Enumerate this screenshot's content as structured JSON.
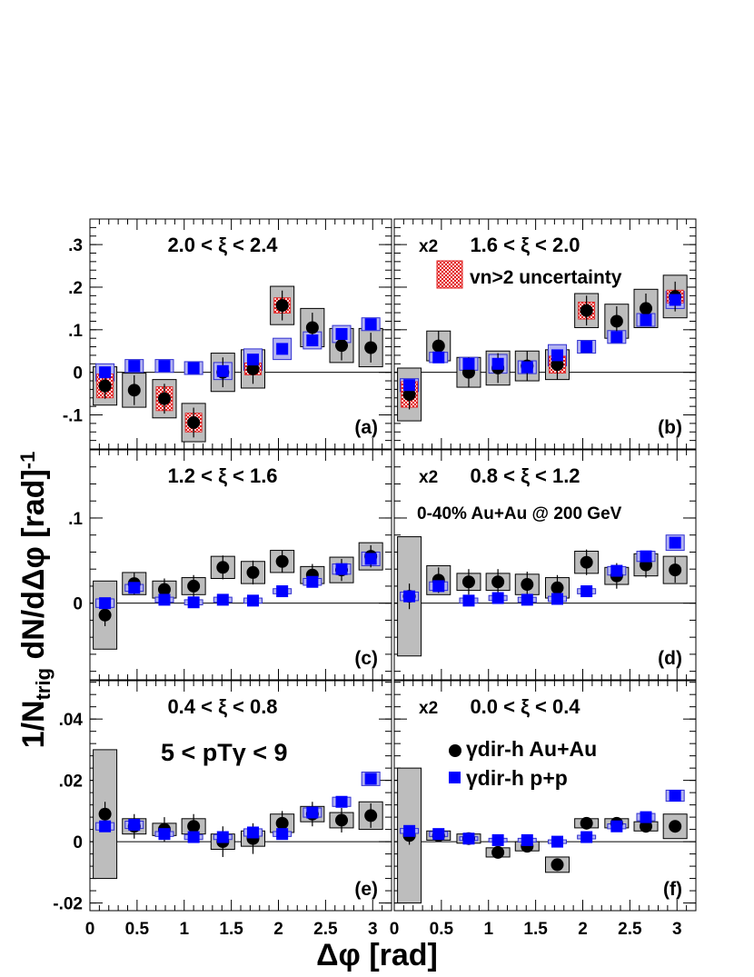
{
  "figure": {
    "ylabel": "1/N_trig dN/dΔφ [rad]⁻¹",
    "xlabel": "Δφ [rad]",
    "x_ticks": [
      "0",
      "0.5",
      "1",
      "1.5",
      "2",
      "2.5",
      "3"
    ]
  },
  "legend": {
    "auau": "γdir-h Au+Au",
    "pp": "γdir-h p+p",
    "vn_uncertainty": "vn>2 uncertainty"
  },
  "annotations": {
    "centrality": "0-40% Au+Au @ 200 GeV",
    "pt_range": "5 < pTγ < 9"
  },
  "colors": {
    "auau": "#000000",
    "pp": "#0000ff",
    "pp_box": "#b3b3f0",
    "auau_box": "#bdbdbd",
    "vn_band": "#ee2222"
  },
  "chart_data": [
    {
      "id": "a",
      "type": "scatter",
      "title": "2.0 < ξ < 2.4",
      "scale": "",
      "panel_label": "(a)",
      "ylim": [
        -0.18,
        0.36
      ],
      "y_ticks": [
        -0.1,
        0,
        0.1,
        0.2,
        0.3
      ],
      "x": [
        0.16,
        0.47,
        0.79,
        1.1,
        1.41,
        1.73,
        2.04,
        2.36,
        2.67,
        2.98
      ],
      "series": [
        {
          "name": "γdir-h Au+Au",
          "values": [
            -0.032,
            -0.042,
            -0.062,
            -0.118,
            0.0,
            0.008,
            0.157,
            0.105,
            0.063,
            0.058
          ],
          "stat": [
            0.03,
            0.035,
            0.035,
            0.035,
            0.035,
            0.035,
            0.035,
            0.035,
            0.035,
            0.035
          ],
          "sys": [
            0.045,
            0.04,
            0.045,
            0.045,
            0.045,
            0.045,
            0.045,
            0.045,
            0.04,
            0.045
          ],
          "vn_unc": [
            0.028,
            0.0,
            0.028,
            0.022,
            0.0,
            0.014,
            0.018,
            0.0,
            0.0,
            0.0
          ]
        },
        {
          "name": "γdir-h p+p",
          "values": [
            0.0,
            0.015,
            0.015,
            0.01,
            0.003,
            0.03,
            0.055,
            0.075,
            0.09,
            0.113
          ],
          "stat": [
            0.008,
            0.008,
            0.008,
            0.008,
            0.008,
            0.008,
            0.008,
            0.008,
            0.008,
            0.008
          ],
          "sys": [
            0.02,
            0.015,
            0.015,
            0.015,
            0.02,
            0.025,
            0.025,
            0.02,
            0.02,
            0.015
          ]
        }
      ]
    },
    {
      "id": "b",
      "type": "scatter",
      "title": "1.6 < ξ < 2.0",
      "scale": "x2",
      "panel_label": "(b)",
      "ylim": [
        -0.18,
        0.36
      ],
      "y_ticks": [
        -0.1,
        0,
        0.1,
        0.2,
        0.3
      ],
      "x": [
        0.16,
        0.47,
        0.79,
        1.1,
        1.41,
        1.73,
        2.04,
        2.36,
        2.67,
        2.98
      ],
      "series": [
        {
          "name": "γdir-h Au+Au",
          "values": [
            -0.052,
            0.062,
            0.0,
            0.01,
            0.015,
            0.018,
            0.145,
            0.12,
            0.15,
            0.178
          ],
          "stat": [
            0.035,
            0.035,
            0.035,
            0.035,
            0.035,
            0.035,
            0.035,
            0.035,
            0.035,
            0.035
          ],
          "sys": [
            0.062,
            0.035,
            0.035,
            0.04,
            0.035,
            0.035,
            0.04,
            0.04,
            0.045,
            0.05
          ],
          "vn_unc": [
            0.03,
            0.0,
            0.0,
            0.0,
            0.0,
            0.02,
            0.02,
            0.0,
            0.0,
            0.015
          ]
        },
        {
          "name": "γdir-h p+p",
          "values": [
            -0.03,
            0.035,
            0.02,
            0.02,
            0.012,
            0.04,
            0.06,
            0.083,
            0.123,
            0.17
          ],
          "stat": [
            0.008,
            0.008,
            0.008,
            0.008,
            0.008,
            0.008,
            0.008,
            0.008,
            0.008,
            0.008
          ],
          "sys": [
            0.015,
            0.012,
            0.015,
            0.022,
            0.015,
            0.025,
            0.015,
            0.015,
            0.015,
            0.02
          ]
        }
      ]
    },
    {
      "id": "c",
      "type": "scatter",
      "title": "1.2 < ξ < 1.6",
      "scale": "",
      "panel_label": "(c)",
      "ylim": [
        -0.09,
        0.18
      ],
      "y_ticks": [
        0,
        0.1
      ],
      "x": [
        0.16,
        0.47,
        0.79,
        1.1,
        1.41,
        1.73,
        2.04,
        2.36,
        2.67,
        2.98
      ],
      "series": [
        {
          "name": "γdir-h Au+Au",
          "values": [
            -0.014,
            0.023,
            0.016,
            0.02,
            0.042,
            0.036,
            0.049,
            0.033,
            0.039,
            0.055
          ],
          "stat": [
            0.013,
            0.013,
            0.013,
            0.013,
            0.014,
            0.014,
            0.013,
            0.013,
            0.013,
            0.013
          ],
          "sys": [
            0.04,
            0.013,
            0.01,
            0.01,
            0.013,
            0.013,
            0.013,
            0.01,
            0.015,
            0.016
          ]
        },
        {
          "name": "γdir-h p+p",
          "values": [
            0.0,
            0.018,
            0.004,
            0.001,
            0.004,
            0.003,
            0.014,
            0.025,
            0.04,
            0.052
          ],
          "stat": [
            0.002,
            0.002,
            0.002,
            0.002,
            0.002,
            0.002,
            0.002,
            0.002,
            0.002,
            0.002
          ],
          "sys": [
            0.005,
            0.004,
            0.003,
            0.003,
            0.003,
            0.003,
            0.003,
            0.004,
            0.006,
            0.008
          ]
        }
      ]
    },
    {
      "id": "d",
      "type": "scatter",
      "title": "0.8 < ξ < 1.2",
      "scale": "x2",
      "panel_label": "(d)",
      "ylim": [
        -0.09,
        0.18
      ],
      "y_ticks": [
        0,
        0.1
      ],
      "x": [
        0.16,
        0.47,
        0.79,
        1.1,
        1.41,
        1.73,
        2.04,
        2.36,
        2.67,
        2.98
      ],
      "series": [
        {
          "name": "γdir-h Au+Au",
          "values": [
            0.008,
            0.027,
            0.025,
            0.025,
            0.022,
            0.018,
            0.048,
            0.032,
            0.045,
            0.039
          ],
          "stat": [
            0.015,
            0.015,
            0.015,
            0.015,
            0.015,
            0.015,
            0.015,
            0.015,
            0.015,
            0.015
          ],
          "sys": [
            0.07,
            0.017,
            0.01,
            0.01,
            0.012,
            0.012,
            0.013,
            0.01,
            0.013,
            0.016
          ]
        },
        {
          "name": "γdir-h p+p",
          "values": [
            0.008,
            0.02,
            0.003,
            0.006,
            0.004,
            0.005,
            0.014,
            0.038,
            0.055,
            0.071
          ],
          "stat": [
            0.002,
            0.002,
            0.002,
            0.002,
            0.002,
            0.002,
            0.002,
            0.002,
            0.002,
            0.002
          ],
          "sys": [
            0.005,
            0.005,
            0.003,
            0.003,
            0.003,
            0.003,
            0.003,
            0.005,
            0.006,
            0.009
          ]
        }
      ]
    },
    {
      "id": "e",
      "type": "scatter",
      "title": "0.4 < ξ < 0.8",
      "scale": "",
      "panel_label": "(e)",
      "ylim": [
        -0.0225,
        0.0525
      ],
      "y_ticks": [
        -0.02,
        0,
        0.02,
        0.04
      ],
      "x": [
        0.16,
        0.47,
        0.79,
        1.1,
        1.41,
        1.73,
        2.04,
        2.36,
        2.67,
        2.98
      ],
      "series": [
        {
          "name": "γdir-h Au+Au",
          "values": [
            0.009,
            0.005,
            0.004,
            0.005,
            0.0,
            0.001,
            0.006,
            0.009,
            0.007,
            0.0085
          ],
          "stat": [
            0.004,
            0.004,
            0.004,
            0.004,
            0.005,
            0.005,
            0.004,
            0.004,
            0.004,
            0.004
          ],
          "sys": [
            0.021,
            0.0025,
            0.002,
            0.0025,
            0.0025,
            0.0025,
            0.003,
            0.0025,
            0.0025,
            0.0045
          ]
        },
        {
          "name": "γdir-h p+p",
          "values": [
            0.005,
            0.0055,
            0.0025,
            0.0015,
            0.0015,
            0.003,
            0.0025,
            0.0095,
            0.013,
            0.0205
          ],
          "stat": [
            0.0008,
            0.0008,
            0.0008,
            0.0008,
            0.0008,
            0.0008,
            0.0008,
            0.0008,
            0.0008,
            0.0008
          ],
          "sys": [
            0.0012,
            0.0012,
            0.0008,
            0.0008,
            0.0008,
            0.0012,
            0.0008,
            0.0015,
            0.0015,
            0.0022
          ]
        }
      ]
    },
    {
      "id": "f",
      "type": "scatter",
      "title": "0.0 < ξ < 0.4",
      "scale": "x2",
      "panel_label": "(f)",
      "ylim": [
        -0.0225,
        0.0525
      ],
      "y_ticks": [
        -0.02,
        0,
        0.02,
        0.04
      ],
      "x": [
        0.16,
        0.47,
        0.79,
        1.1,
        1.41,
        1.73,
        2.04,
        2.36,
        2.67,
        2.98
      ],
      "series": [
        {
          "name": "γdir-h Au+Au",
          "values": [
            0.002,
            0.002,
            0.001,
            -0.0035,
            -0.0015,
            -0.0075,
            0.006,
            0.006,
            0.005,
            0.005
          ],
          "stat": [
            0.003,
            0.002,
            0.002,
            0.002,
            0.002,
            0.002,
            0.002,
            0.002,
            0.002,
            0.002
          ],
          "sys": [
            0.022,
            0.0015,
            0.0015,
            0.0015,
            0.0015,
            0.0025,
            0.0015,
            0.0015,
            0.0015,
            0.004
          ]
        },
        {
          "name": "γdir-h p+p",
          "values": [
            0.0035,
            0.0025,
            0.001,
            0.0005,
            0.0005,
            0.0,
            0.0015,
            0.005,
            0.008,
            0.015
          ],
          "stat": [
            0.0006,
            0.0006,
            0.0006,
            0.0006,
            0.0006,
            0.0006,
            0.0006,
            0.0006,
            0.0006,
            0.0006
          ],
          "sys": [
            0.0008,
            0.0008,
            0.0006,
            0.0006,
            0.0006,
            0.0006,
            0.0006,
            0.0008,
            0.0012,
            0.0018
          ]
        }
      ]
    }
  ]
}
